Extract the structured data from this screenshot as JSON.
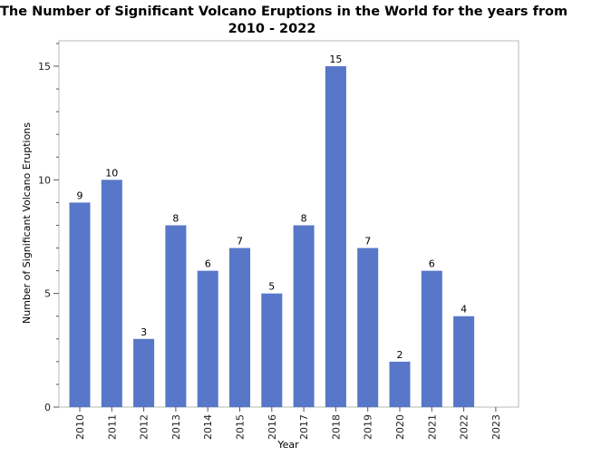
{
  "chart_data": {
    "type": "bar",
    "title_line1": "The Number of Significant Volcano Eruptions in the World for the years from",
    "title_line2": "2010 - 2022",
    "xlabel": "Year",
    "ylabel": "Number of Significant Volcano Eruptions",
    "categories": [
      "2010",
      "2011",
      "2012",
      "2013",
      "2014",
      "2015",
      "2016",
      "2017",
      "2018",
      "2019",
      "2020",
      "2021",
      "2022",
      "2023"
    ],
    "values": [
      9,
      10,
      3,
      8,
      6,
      7,
      5,
      8,
      15,
      7,
      2,
      6,
      4,
      null
    ],
    "ylim": [
      0,
      16
    ],
    "yticks": [
      0,
      5,
      10,
      15
    ],
    "bar_color": "#5877c8",
    "grid": false,
    "legend": "none"
  }
}
